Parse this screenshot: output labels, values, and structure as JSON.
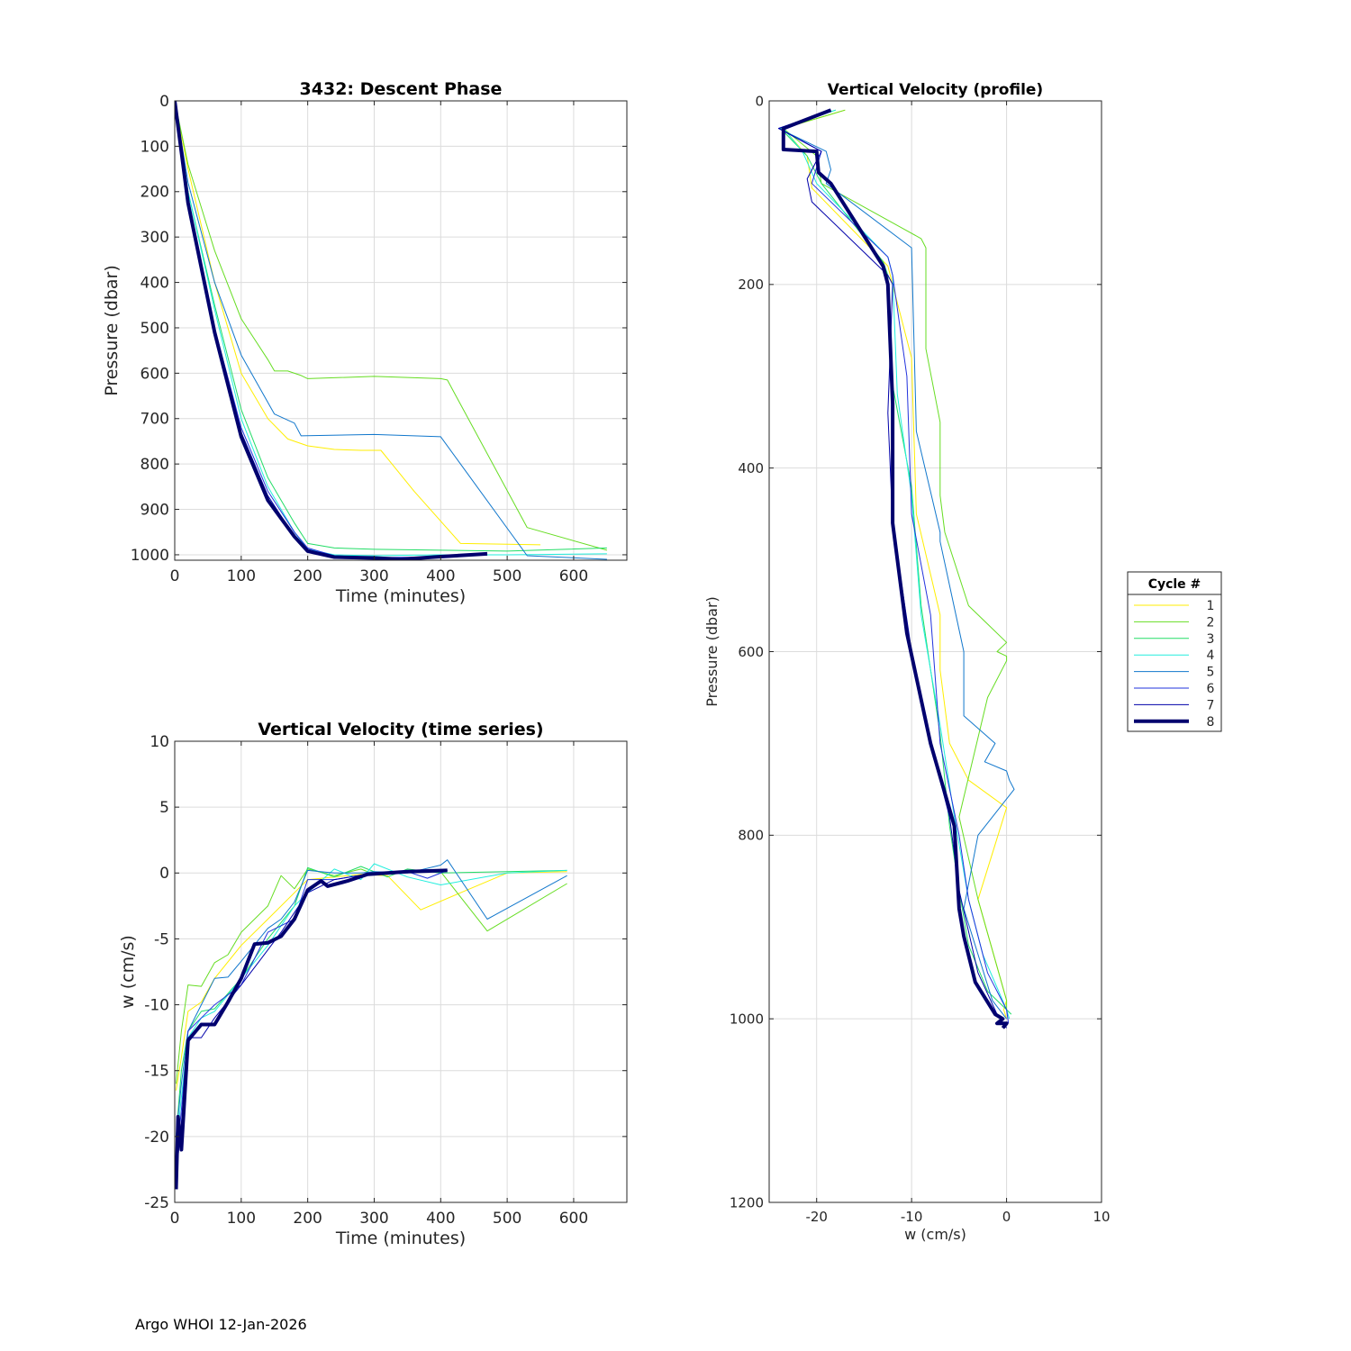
{
  "footer": "Argo WHOI 12-Jan-2026",
  "colors": {
    "1": "#ffee00",
    "2": "#66dd22",
    "3": "#22dd66",
    "4": "#22eedd",
    "5": "#1177cc",
    "6": "#2233dd",
    "7": "#0000aa",
    "8": "#00006e"
  },
  "chart_data": [
    {
      "id": "descent",
      "type": "line",
      "title": "3432: Descent Phase",
      "xlabel": "Time (minutes)",
      "ylabel": "Pressure (dbar)",
      "xlim": [
        0,
        680
      ],
      "ylim": [
        1012,
        0
      ],
      "xticks": [
        0,
        100,
        200,
        300,
        400,
        500,
        600
      ],
      "yticks": [
        0,
        100,
        200,
        300,
        400,
        500,
        600,
        700,
        800,
        900,
        1000
      ],
      "series": [
        {
          "name": "1",
          "x": [
            0,
            20,
            60,
            100,
            140,
            170,
            200,
            240,
            280,
            310,
            360,
            430,
            550
          ],
          "y": [
            0,
            150,
            400,
            600,
            700,
            745,
            760,
            768,
            770,
            770,
            860,
            975,
            978
          ]
        },
        {
          "name": "2",
          "x": [
            0,
            20,
            60,
            100,
            140,
            150,
            170,
            190,
            200,
            300,
            400,
            410,
            530,
            650
          ],
          "y": [
            0,
            140,
            330,
            480,
            570,
            595,
            595,
            605,
            612,
            607,
            612,
            615,
            940,
            990
          ]
        },
        {
          "name": "3",
          "x": [
            0,
            20,
            60,
            100,
            140,
            180,
            200,
            240,
            300,
            400,
            500,
            650
          ],
          "y": [
            0,
            200,
            450,
            680,
            830,
            930,
            975,
            985,
            988,
            990,
            992,
            985
          ]
        },
        {
          "name": "4",
          "x": [
            0,
            20,
            60,
            100,
            140,
            180,
            200,
            240,
            300,
            400,
            500,
            650
          ],
          "y": [
            0,
            200,
            460,
            700,
            850,
            950,
            988,
            1000,
            1002,
            1000,
            1000,
            998
          ]
        },
        {
          "name": "5",
          "x": [
            0,
            20,
            60,
            100,
            150,
            180,
            190,
            300,
            400,
            530,
            650
          ],
          "y": [
            0,
            180,
            400,
            560,
            690,
            710,
            738,
            735,
            740,
            1002,
            1010
          ]
        },
        {
          "name": "6",
          "x": [
            0,
            20,
            60,
            100,
            140,
            180,
            200,
            240,
            300,
            400,
            470
          ],
          "y": [
            0,
            220,
            500,
            720,
            860,
            950,
            985,
            1002,
            1006,
            1005,
            1000
          ]
        },
        {
          "name": "7",
          "x": [
            0,
            20,
            60,
            100,
            140,
            180,
            200,
            240,
            300,
            340,
            400,
            470
          ],
          "y": [
            0,
            225,
            505,
            730,
            870,
            960,
            988,
            1005,
            1008,
            1010,
            1005,
            1000
          ]
        },
        {
          "name": "8",
          "x": [
            0,
            20,
            60,
            100,
            140,
            180,
            200,
            240,
            300,
            340,
            400,
            470
          ],
          "y": [
            0,
            225,
            510,
            740,
            880,
            960,
            992,
            1005,
            1007,
            1010,
            1004,
            998
          ]
        }
      ]
    },
    {
      "id": "w_time",
      "type": "line",
      "title": "Vertical Velocity (time series)",
      "xlabel": "Time (minutes)",
      "ylabel": "w (cm/s)",
      "xlim": [
        0,
        680
      ],
      "ylim": [
        -25,
        10
      ],
      "xticks": [
        0,
        100,
        200,
        300,
        400,
        500,
        600
      ],
      "yticks": [
        10,
        5,
        0,
        -5,
        -10,
        -15,
        -20,
        -25
      ],
      "series": [
        {
          "name": "1",
          "x": [
            2,
            10,
            20,
            40,
            60,
            100,
            140,
            180,
            200,
            240,
            280,
            320,
            370,
            430,
            500,
            590
          ],
          "y": [
            -16.5,
            -14,
            -10.5,
            -9.8,
            -8,
            -5.5,
            -3.5,
            -1.5,
            -0.5,
            -0.3,
            -0.1,
            -0.2,
            -2.8,
            -1.5,
            0,
            0.1
          ]
        },
        {
          "name": "2",
          "x": [
            2,
            10,
            20,
            40,
            60,
            80,
            100,
            140,
            160,
            180,
            200,
            240,
            280,
            300,
            350,
            400,
            470,
            590
          ],
          "y": [
            -16,
            -12,
            -8.5,
            -8.6,
            -6.8,
            -6.2,
            -4.5,
            -2.5,
            -0.2,
            -1.2,
            0.3,
            -0.2,
            0.3,
            -0.1,
            0.2,
            0.1,
            -4.4,
            -0.8
          ]
        },
        {
          "name": "3",
          "x": [
            2,
            10,
            20,
            40,
            60,
            100,
            140,
            180,
            200,
            240,
            280,
            320,
            350,
            400,
            500,
            590
          ],
          "y": [
            -20,
            -15,
            -12,
            -10.5,
            -10.3,
            -8,
            -5,
            -2.5,
            0.4,
            -0.3,
            0.5,
            -0.3,
            0.3,
            0,
            0.1,
            0.2
          ]
        },
        {
          "name": "4",
          "x": [
            2,
            10,
            20,
            40,
            60,
            100,
            140,
            180,
            200,
            240,
            280,
            300,
            350,
            400,
            500,
            590
          ],
          "y": [
            -21,
            -17,
            -12.5,
            -11,
            -10.5,
            -8,
            -5.5,
            -2.5,
            -1.5,
            0.3,
            -0.5,
            0.7,
            -0.3,
            -0.9,
            0,
            0.2
          ]
        },
        {
          "name": "5",
          "x": [
            2,
            10,
            20,
            40,
            60,
            80,
            100,
            140,
            160,
            180,
            200,
            240,
            280,
            300,
            350,
            400,
            410,
            470,
            590
          ],
          "y": [
            -20,
            -16,
            -12,
            -10,
            -8,
            -7.9,
            -6.7,
            -4.2,
            -3.5,
            -2.2,
            0.2,
            0,
            0,
            0.1,
            0,
            0.6,
            1,
            -3.5,
            -0.2
          ]
        },
        {
          "name": "6",
          "x": [
            2,
            10,
            20,
            40,
            60,
            100,
            140,
            180,
            200,
            240,
            300,
            350,
            380,
            410
          ],
          "y": [
            -22,
            -18,
            -12,
            -11,
            -10,
            -8.5,
            -4.5,
            -3.5,
            -0.5,
            -0.5,
            0,
            0.1,
            -0.4,
            0.2
          ]
        },
        {
          "name": "7",
          "x": [
            2,
            10,
            20,
            40,
            60,
            100,
            130,
            160,
            180,
            200,
            240,
            300,
            350,
            410
          ],
          "y": [
            -23,
            -19,
            -12.5,
            -12.5,
            -11,
            -8.5,
            -6.5,
            -4.5,
            -3,
            -1.5,
            -0.5,
            0,
            0.1,
            0.2
          ]
        },
        {
          "name": "8",
          "x": [
            2,
            5,
            10,
            20,
            40,
            60,
            80,
            100,
            120,
            140,
            160,
            180,
            200,
            220,
            230,
            260,
            290,
            350,
            410
          ],
          "y": [
            -24,
            -18.5,
            -21,
            -12.7,
            -11.5,
            -11.5,
            -9.8,
            -8,
            -5.4,
            -5.3,
            -4.8,
            -3.5,
            -1.3,
            -0.6,
            -1,
            -0.6,
            -0.1,
            0.1,
            0.2
          ]
        }
      ]
    },
    {
      "id": "w_profile",
      "type": "line",
      "title": "Vertical Velocity (profile)",
      "xlabel": "w (cm/s)",
      "ylabel": "Pressure (dbar)",
      "xlim": [
        -25,
        10
      ],
      "ylim": [
        1200,
        0
      ],
      "xticks": [
        -20,
        -10,
        0,
        10
      ],
      "yticks": [
        0,
        200,
        400,
        600,
        800,
        1000,
        1200
      ],
      "series": [
        {
          "name": "1",
          "x": [
            -17,
            -23.5,
            -21,
            -20.5,
            -12.5,
            -10,
            -9.5,
            -7,
            -7,
            -6,
            -4,
            0,
            -3,
            0,
            -0.3,
            0
          ],
          "y": [
            10,
            30,
            60,
            95,
            180,
            280,
            450,
            560,
            620,
            700,
            740,
            770,
            870,
            980,
            990,
            1000
          ]
        },
        {
          "name": "2",
          "x": [
            -17,
            -23.5,
            -20,
            -19.5,
            -9,
            -8.5,
            -8.5,
            -7,
            -7,
            -6.5,
            -4,
            -2,
            0,
            -1,
            0,
            0,
            -2,
            -5,
            -3,
            0,
            0
          ],
          "y": [
            10,
            30,
            60,
            90,
            150,
            160,
            270,
            350,
            430,
            470,
            550,
            570,
            590,
            600,
            605,
            610,
            650,
            780,
            870,
            980,
            990
          ]
        },
        {
          "name": "3",
          "x": [
            -18,
            -23.8,
            -21,
            -19.5,
            -13,
            -12.5,
            -12,
            -10,
            -9,
            -7,
            -6,
            -5,
            -4,
            -2,
            0,
            0.5
          ],
          "y": [
            10,
            30,
            60,
            90,
            175,
            190,
            310,
            420,
            550,
            690,
            790,
            860,
            920,
            970,
            990,
            995
          ]
        },
        {
          "name": "4",
          "x": [
            -18,
            -23.5,
            -21.5,
            -20,
            -12.5,
            -12,
            -11.5,
            -10,
            -9,
            -7,
            -5.5,
            -4,
            -2.5,
            0,
            0.3
          ],
          "y": [
            10,
            30,
            55,
            90,
            170,
            190,
            320,
            430,
            560,
            680,
            780,
            870,
            930,
            990,
            1000
          ]
        },
        {
          "name": "5",
          "x": [
            -18.5,
            -24,
            -19,
            -18.5,
            -19,
            -10,
            -9.5,
            -7,
            -7,
            -4.5,
            -4.5,
            -1.2,
            -2.3,
            0,
            0.3,
            0.8,
            -3,
            -4.5,
            -1.5,
            0
          ],
          "y": [
            10,
            30,
            55,
            75,
            90,
            160,
            360,
            470,
            480,
            600,
            670,
            700,
            720,
            730,
            740,
            750,
            800,
            880,
            980,
            1000
          ]
        },
        {
          "name": "6",
          "x": [
            -18.5,
            -24,
            -19.5,
            -20.5,
            -12.5,
            -12,
            -10.5,
            -10,
            -8,
            -7,
            -5,
            -4,
            -2,
            0,
            0.2
          ],
          "y": [
            10,
            30,
            55,
            90,
            170,
            190,
            300,
            450,
            560,
            700,
            800,
            870,
            950,
            990,
            1005
          ]
        },
        {
          "name": "7",
          "x": [
            -18.5,
            -24,
            -19.5,
            -21,
            -20.5,
            -12.5,
            -12,
            -12.5,
            -12,
            -10,
            -8,
            -6,
            -5,
            -3,
            -1,
            0
          ],
          "y": [
            10,
            30,
            55,
            85,
            110,
            190,
            200,
            340,
            460,
            600,
            700,
            780,
            860,
            950,
            995,
            1010
          ]
        },
        {
          "name": "8",
          "x": [
            -18.5,
            -23.5,
            -23.5,
            -20,
            -19.8,
            -18.5,
            -13,
            -12.5,
            -12,
            -12,
            -10.5,
            -8,
            -5.5,
            -5,
            -4.5,
            -3.3,
            -1.2,
            -0.4,
            -1,
            0,
            -0.4
          ],
          "y": [
            10,
            30,
            53,
            55,
            78,
            90,
            180,
            200,
            330,
            460,
            580,
            700,
            790,
            880,
            910,
            960,
            995,
            1000,
            1005,
            1005,
            1010
          ]
        }
      ]
    }
  ],
  "legend": {
    "title": "Cycle #",
    "entries": [
      "1",
      "2",
      "3",
      "4",
      "5",
      "6",
      "7",
      "8"
    ]
  }
}
